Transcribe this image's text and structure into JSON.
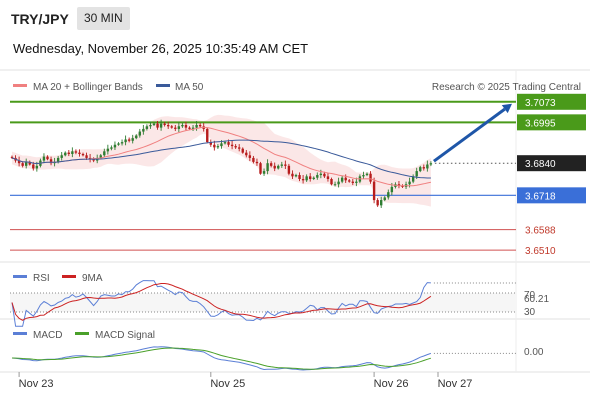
{
  "header": {
    "symbol": "TRY/JPY",
    "timeframe": "30 MIN",
    "datetime": "Wednesday, November 26, 2025 10:35:49 AM CET"
  },
  "legend": {
    "ma20": "MA 20 + Bollinger Bands",
    "ma50": "MA 50",
    "credit": "Research © 2025 Trading Central"
  },
  "colors": {
    "ma20": "#f08080",
    "ma50": "#3a5a9a",
    "bull": "#2e7d32",
    "bear": "#b71c1c",
    "target": "#4a9a1a",
    "pivot": "#3a6fd8",
    "support": "#d05050",
    "last": "#222222",
    "arrow": "#1e56a8",
    "rsi": "#5b7fd6",
    "signal9": "#cc2222",
    "macd": "#5b7fd6",
    "macd_signal": "#4aa02a"
  },
  "rsi": {
    "label": "RSI",
    "ma_label": "9MA",
    "value": "60.21",
    "upper": "70",
    "lower": "30"
  },
  "macd": {
    "label": "MACD",
    "signal_label": "MACD Signal",
    "value": "0.00"
  },
  "chart_data": {
    "type": "candlestick",
    "title": "TRY/JPY 30 MIN",
    "ylim": [
      3.6465,
      3.7095
    ],
    "x_tick_labels": [
      "Nov 23",
      "Nov 25",
      "Nov 26",
      "Nov 27"
    ],
    "x_tick_index": [
      2,
      56,
      102,
      120
    ],
    "levels": [
      {
        "value": 3.7073,
        "label": "3.7073",
        "kind": "target"
      },
      {
        "value": 3.6995,
        "label": "3.6995",
        "kind": "target"
      },
      {
        "value": 3.684,
        "label": "3.6840",
        "kind": "last"
      },
      {
        "value": 3.6718,
        "label": "3.6718",
        "kind": "pivot"
      },
      {
        "value": 3.6588,
        "label": "3.6588",
        "kind": "support"
      },
      {
        "value": 3.651,
        "label": "3.6510",
        "kind": "support"
      }
    ],
    "close": [
      3.686,
      3.685,
      3.684,
      3.683,
      3.6845,
      3.6835,
      3.682,
      3.683,
      3.685,
      3.6865,
      3.6855,
      3.684,
      3.6845,
      3.686,
      3.687,
      3.688,
      3.6875,
      3.6885,
      3.688,
      3.6875,
      3.687,
      3.686,
      3.6855,
      3.685,
      3.686,
      3.687,
      3.6885,
      3.6895,
      3.69,
      3.691,
      3.6915,
      3.692,
      3.693,
      3.6925,
      3.6935,
      3.6945,
      3.696,
      3.697,
      3.698,
      3.6985,
      3.699,
      3.6975,
      3.699,
      3.6985,
      3.698,
      3.6975,
      3.697,
      3.698,
      3.6985,
      3.6975,
      3.697,
      3.6975,
      3.6985,
      3.698,
      3.697,
      3.692,
      3.691,
      3.69,
      3.6905,
      3.6915,
      3.692,
      3.691,
      3.6905,
      3.69,
      3.6895,
      3.688,
      3.687,
      3.686,
      3.6845,
      3.684,
      3.68,
      3.681,
      3.684,
      3.683,
      3.682,
      3.683,
      3.6835,
      3.683,
      3.68,
      3.679,
      3.6795,
      3.678,
      3.6775,
      3.679,
      3.678,
      3.6785,
      3.6795,
      3.68,
      3.679,
      3.678,
      3.676,
      3.676,
      3.677,
      3.6785,
      3.6775,
      3.677,
      3.6765,
      3.677,
      3.679,
      3.6795,
      3.68,
      3.677,
      3.67,
      3.668,
      3.67,
      3.671,
      3.673,
      3.675,
      3.676,
      3.6755,
      3.675,
      3.676,
      3.677,
      3.679,
      3.681,
      3.6825,
      3.682,
      3.6835,
      3.684
    ]
  }
}
